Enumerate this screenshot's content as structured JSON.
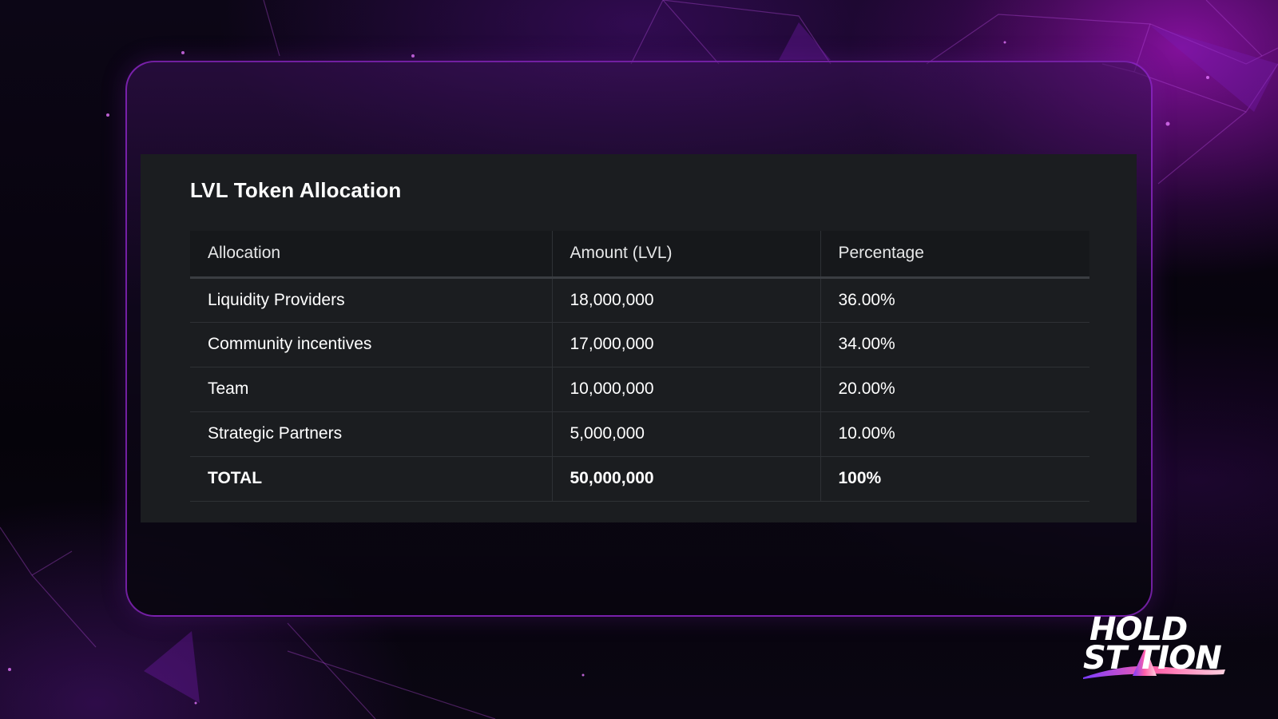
{
  "card": {
    "title": "LVL Token Allocation"
  },
  "table": {
    "headers": [
      "Allocation",
      "Amount (LVL)",
      "Percentage"
    ],
    "rows": [
      [
        "Liquidity Providers",
        "18,000,000",
        "36.00%"
      ],
      [
        "Community incentives",
        "17,000,000",
        "34.00%"
      ],
      [
        "Team",
        "10,000,000",
        "20.00%"
      ],
      [
        "Strategic Partners",
        "5,000,000",
        "10.00%"
      ]
    ],
    "total": [
      "TOTAL",
      "50,000,000",
      "100%"
    ]
  },
  "logo": {
    "line1": "HOLD",
    "line2": "ST TION"
  },
  "colors": {
    "accent": "#a020d0",
    "card_bg": "#1b1d20",
    "text": "#ffffff"
  }
}
